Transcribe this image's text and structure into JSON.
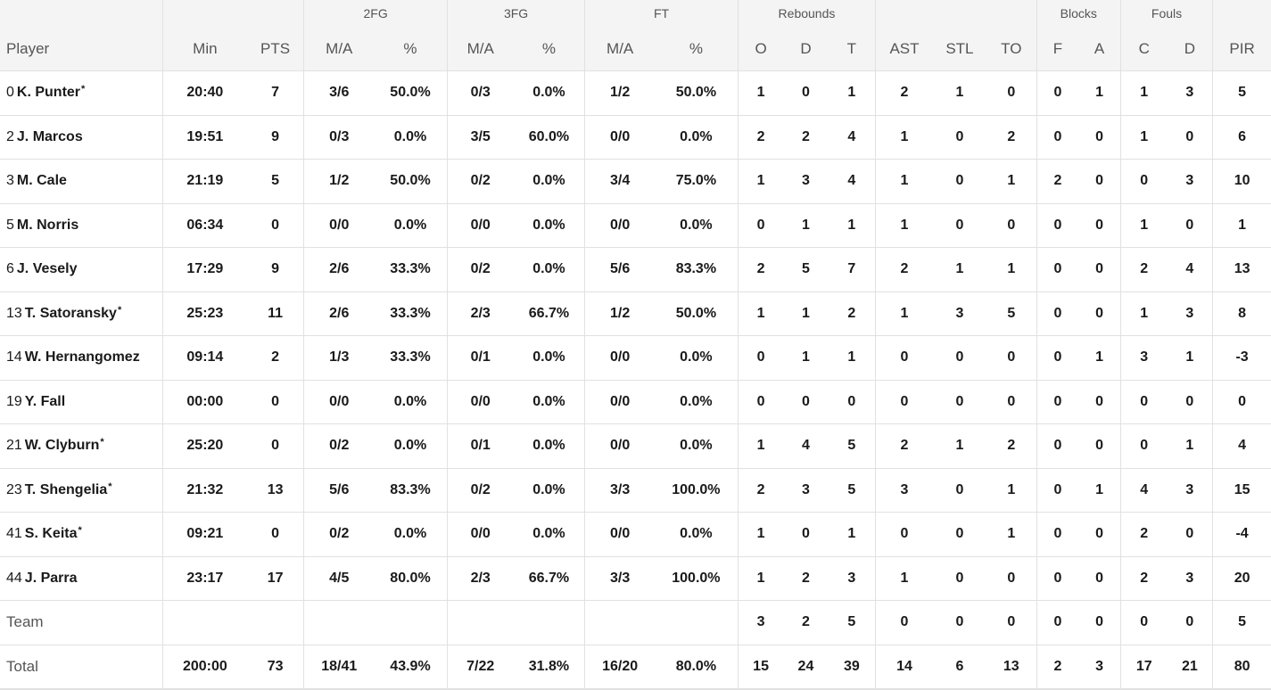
{
  "groups": {
    "fg2": "2FG",
    "fg3": "3FG",
    "ft": "FT",
    "rebounds": "Rebounds",
    "blocks": "Blocks",
    "fouls": "Fouls"
  },
  "columns": {
    "player": "Player",
    "min": "Min",
    "pts": "PTS",
    "fg2_ma": "M/A",
    "fg2_pct": "%",
    "fg3_ma": "M/A",
    "fg3_pct": "%",
    "ft_ma": "M/A",
    "ft_pct": "%",
    "reb_o": "O",
    "reb_d": "D",
    "reb_t": "T",
    "ast": "AST",
    "stl": "STL",
    "to": "TO",
    "blk_f": "F",
    "blk_a": "A",
    "foul_c": "C",
    "foul_d": "D",
    "pir": "PIR"
  },
  "players": [
    {
      "num": "0",
      "name": "K. Punter",
      "star": "*",
      "min": "20:40",
      "pts": "7",
      "fg2_ma": "3/6",
      "fg2_pct": "50.0%",
      "fg3_ma": "0/3",
      "fg3_pct": "0.0%",
      "ft_ma": "1/2",
      "ft_pct": "50.0%",
      "reb_o": "1",
      "reb_d": "0",
      "reb_t": "1",
      "ast": "2",
      "stl": "1",
      "to": "0",
      "blk_f": "0",
      "blk_a": "1",
      "foul_c": "1",
      "foul_d": "3",
      "pir": "5"
    },
    {
      "num": "2",
      "name": "J. Marcos",
      "star": "",
      "min": "19:51",
      "pts": "9",
      "fg2_ma": "0/3",
      "fg2_pct": "0.0%",
      "fg3_ma": "3/5",
      "fg3_pct": "60.0%",
      "ft_ma": "0/0",
      "ft_pct": "0.0%",
      "reb_o": "2",
      "reb_d": "2",
      "reb_t": "4",
      "ast": "1",
      "stl": "0",
      "to": "2",
      "blk_f": "0",
      "blk_a": "0",
      "foul_c": "1",
      "foul_d": "0",
      "pir": "6"
    },
    {
      "num": "3",
      "name": "M. Cale",
      "star": "",
      "min": "21:19",
      "pts": "5",
      "fg2_ma": "1/2",
      "fg2_pct": "50.0%",
      "fg3_ma": "0/2",
      "fg3_pct": "0.0%",
      "ft_ma": "3/4",
      "ft_pct": "75.0%",
      "reb_o": "1",
      "reb_d": "3",
      "reb_t": "4",
      "ast": "1",
      "stl": "0",
      "to": "1",
      "blk_f": "2",
      "blk_a": "0",
      "foul_c": "0",
      "foul_d": "3",
      "pir": "10"
    },
    {
      "num": "5",
      "name": "M. Norris",
      "star": "",
      "min": "06:34",
      "pts": "0",
      "fg2_ma": "0/0",
      "fg2_pct": "0.0%",
      "fg3_ma": "0/0",
      "fg3_pct": "0.0%",
      "ft_ma": "0/0",
      "ft_pct": "0.0%",
      "reb_o": "0",
      "reb_d": "1",
      "reb_t": "1",
      "ast": "1",
      "stl": "0",
      "to": "0",
      "blk_f": "0",
      "blk_a": "0",
      "foul_c": "1",
      "foul_d": "0",
      "pir": "1"
    },
    {
      "num": "6",
      "name": "J. Vesely",
      "star": "",
      "min": "17:29",
      "pts": "9",
      "fg2_ma": "2/6",
      "fg2_pct": "33.3%",
      "fg3_ma": "0/2",
      "fg3_pct": "0.0%",
      "ft_ma": "5/6",
      "ft_pct": "83.3%",
      "reb_o": "2",
      "reb_d": "5",
      "reb_t": "7",
      "ast": "2",
      "stl": "1",
      "to": "1",
      "blk_f": "0",
      "blk_a": "0",
      "foul_c": "2",
      "foul_d": "4",
      "pir": "13"
    },
    {
      "num": "13",
      "name": "T. Satoransky",
      "star": "*",
      "min": "25:23",
      "pts": "11",
      "fg2_ma": "2/6",
      "fg2_pct": "33.3%",
      "fg3_ma": "2/3",
      "fg3_pct": "66.7%",
      "ft_ma": "1/2",
      "ft_pct": "50.0%",
      "reb_o": "1",
      "reb_d": "1",
      "reb_t": "2",
      "ast": "1",
      "stl": "3",
      "to": "5",
      "blk_f": "0",
      "blk_a": "0",
      "foul_c": "1",
      "foul_d": "3",
      "pir": "8"
    },
    {
      "num": "14",
      "name": "W. Hernangomez",
      "star": "",
      "min": "09:14",
      "pts": "2",
      "fg2_ma": "1/3",
      "fg2_pct": "33.3%",
      "fg3_ma": "0/1",
      "fg3_pct": "0.0%",
      "ft_ma": "0/0",
      "ft_pct": "0.0%",
      "reb_o": "0",
      "reb_d": "1",
      "reb_t": "1",
      "ast": "0",
      "stl": "0",
      "to": "0",
      "blk_f": "0",
      "blk_a": "1",
      "foul_c": "3",
      "foul_d": "1",
      "pir": "-3"
    },
    {
      "num": "19",
      "name": "Y. Fall",
      "star": "",
      "min": "00:00",
      "pts": "0",
      "fg2_ma": "0/0",
      "fg2_pct": "0.0%",
      "fg3_ma": "0/0",
      "fg3_pct": "0.0%",
      "ft_ma": "0/0",
      "ft_pct": "0.0%",
      "reb_o": "0",
      "reb_d": "0",
      "reb_t": "0",
      "ast": "0",
      "stl": "0",
      "to": "0",
      "blk_f": "0",
      "blk_a": "0",
      "foul_c": "0",
      "foul_d": "0",
      "pir": "0"
    },
    {
      "num": "21",
      "name": "W. Clyburn",
      "star": "*",
      "min": "25:20",
      "pts": "0",
      "fg2_ma": "0/2",
      "fg2_pct": "0.0%",
      "fg3_ma": "0/1",
      "fg3_pct": "0.0%",
      "ft_ma": "0/0",
      "ft_pct": "0.0%",
      "reb_o": "1",
      "reb_d": "4",
      "reb_t": "5",
      "ast": "2",
      "stl": "1",
      "to": "2",
      "blk_f": "0",
      "blk_a": "0",
      "foul_c": "0",
      "foul_d": "1",
      "pir": "4"
    },
    {
      "num": "23",
      "name": "T. Shengelia",
      "star": "*",
      "min": "21:32",
      "pts": "13",
      "fg2_ma": "5/6",
      "fg2_pct": "83.3%",
      "fg3_ma": "0/2",
      "fg3_pct": "0.0%",
      "ft_ma": "3/3",
      "ft_pct": "100.0%",
      "reb_o": "2",
      "reb_d": "3",
      "reb_t": "5",
      "ast": "3",
      "stl": "0",
      "to": "1",
      "blk_f": "0",
      "blk_a": "1",
      "foul_c": "4",
      "foul_d": "3",
      "pir": "15"
    },
    {
      "num": "41",
      "name": "S. Keita",
      "star": "*",
      "min": "09:21",
      "pts": "0",
      "fg2_ma": "0/2",
      "fg2_pct": "0.0%",
      "fg3_ma": "0/0",
      "fg3_pct": "0.0%",
      "ft_ma": "0/0",
      "ft_pct": "0.0%",
      "reb_o": "1",
      "reb_d": "0",
      "reb_t": "1",
      "ast": "0",
      "stl": "0",
      "to": "1",
      "blk_f": "0",
      "blk_a": "0",
      "foul_c": "2",
      "foul_d": "0",
      "pir": "-4"
    },
    {
      "num": "44",
      "name": "J. Parra",
      "star": "",
      "min": "23:17",
      "pts": "17",
      "fg2_ma": "4/5",
      "fg2_pct": "80.0%",
      "fg3_ma": "2/3",
      "fg3_pct": "66.7%",
      "ft_ma": "3/3",
      "ft_pct": "100.0%",
      "reb_o": "1",
      "reb_d": "2",
      "reb_t": "3",
      "ast": "1",
      "stl": "0",
      "to": "0",
      "blk_f": "0",
      "blk_a": "0",
      "foul_c": "2",
      "foul_d": "3",
      "pir": "20"
    }
  ],
  "team": {
    "label": "Team",
    "min": "",
    "pts": "",
    "fg2_ma": "",
    "fg2_pct": "",
    "fg3_ma": "",
    "fg3_pct": "",
    "ft_ma": "",
    "ft_pct": "",
    "reb_o": "3",
    "reb_d": "2",
    "reb_t": "5",
    "ast": "0",
    "stl": "0",
    "to": "0",
    "blk_f": "0",
    "blk_a": "0",
    "foul_c": "0",
    "foul_d": "0",
    "pir": "5"
  },
  "total": {
    "label": "Total",
    "min": "200:00",
    "pts": "73",
    "fg2_ma": "18/41",
    "fg2_pct": "43.9%",
    "fg3_ma": "7/22",
    "fg3_pct": "31.8%",
    "ft_ma": "16/20",
    "ft_pct": "80.0%",
    "reb_o": "15",
    "reb_d": "24",
    "reb_t": "39",
    "ast": "14",
    "stl": "6",
    "to": "13",
    "blk_f": "2",
    "blk_a": "3",
    "foul_c": "17",
    "foul_d": "21",
    "pir": "80"
  }
}
